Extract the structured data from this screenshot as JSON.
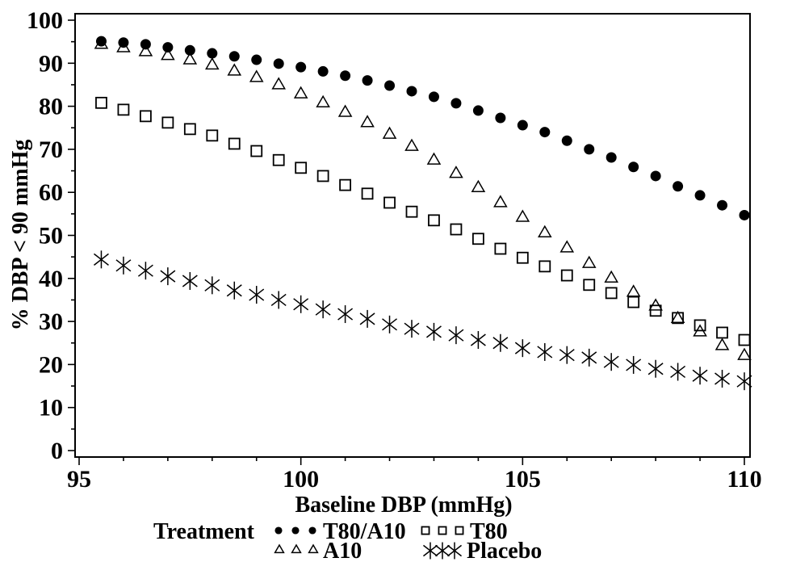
{
  "chart_data": {
    "type": "scatter",
    "title": "",
    "xlabel": "Baseline DBP (mmHg)",
    "ylabel": "% DBP < 90 mmHg",
    "legend_title": "Treatment",
    "legend_position": "bottom",
    "grid": false,
    "xlim": [
      95,
      110
    ],
    "ylim": [
      0,
      100
    ],
    "x_major_ticks": [
      95,
      100,
      105,
      110
    ],
    "x_minor_step": 1,
    "y_major_step": 10,
    "y_minor_step": 5,
    "x_start": 95.5,
    "x_step": 0.5,
    "colors": {
      "foreground": "#000000",
      "background": "#ffffff"
    },
    "series": [
      {
        "name": "T80/A10",
        "marker": "filled-circle-icon",
        "values": [
          95.1,
          94.8,
          94.4,
          93.7,
          93.0,
          92.3,
          91.6,
          90.8,
          89.9,
          89.1,
          88.1,
          87.1,
          86.0,
          84.8,
          83.5,
          82.2,
          80.7,
          79.0,
          77.3,
          75.6,
          74.0,
          72.0,
          70.0,
          68.1,
          65.9,
          63.8,
          61.4,
          59.3,
          57.0,
          54.7
        ]
      },
      {
        "name": "T80",
        "marker": "open-square-icon",
        "values": [
          80.8,
          79.2,
          77.7,
          76.2,
          74.7,
          73.2,
          71.3,
          69.6,
          67.5,
          65.7,
          63.8,
          61.7,
          59.7,
          57.6,
          55.5,
          53.5,
          51.4,
          49.2,
          46.9,
          44.8,
          42.8,
          40.7,
          38.5,
          36.6,
          34.5,
          32.5,
          30.8,
          29.1,
          27.4,
          25.7
        ]
      },
      {
        "name": "A10",
        "marker": "open-triangle-icon",
        "values": [
          94.6,
          93.8,
          92.9,
          92.0,
          91.0,
          89.8,
          88.4,
          86.9,
          85.2,
          83.1,
          81.0,
          78.8,
          76.4,
          73.7,
          70.9,
          67.7,
          64.6,
          61.3,
          57.8,
          54.4,
          50.8,
          47.3,
          43.7,
          40.3,
          37.0,
          33.8,
          30.9,
          27.8,
          24.6,
          22.3
        ]
      },
      {
        "name": "Placebo",
        "marker": "asterisk-icon",
        "values": [
          44.4,
          43.0,
          41.8,
          40.5,
          39.4,
          38.4,
          37.2,
          36.2,
          35.0,
          34.0,
          32.8,
          31.7,
          30.6,
          29.3,
          28.3,
          27.6,
          26.8,
          25.7,
          25.0,
          23.8,
          22.9,
          22.2,
          21.6,
          20.6,
          19.9,
          19.0,
          18.3,
          17.4,
          16.7,
          16.1
        ]
      }
    ]
  }
}
